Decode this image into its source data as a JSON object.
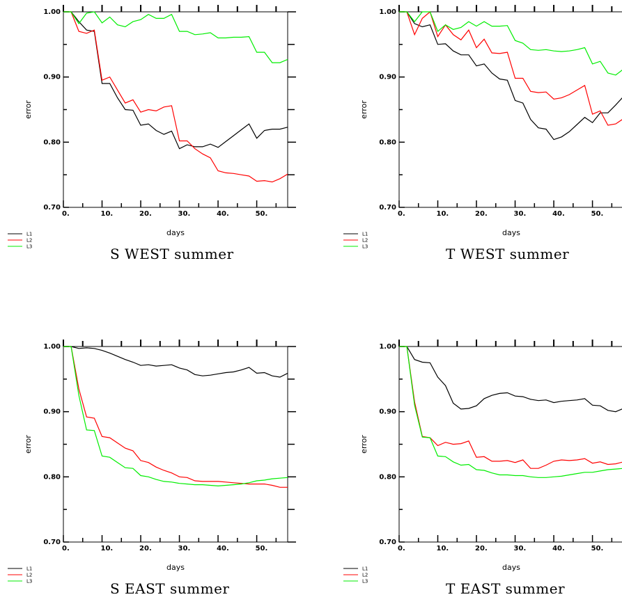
{
  "chart_data": [
    {
      "type": "line",
      "title": "S WEST summer",
      "xlabel": "days",
      "ylabel": "error",
      "xlim": [
        0,
        58
      ],
      "ylim": [
        0.7,
        1.0
      ],
      "xticks": [
        "0.",
        "10.",
        "20.",
        "30.",
        "40.",
        "50."
      ],
      "yticks": [
        "0.70",
        "0.80",
        "0.90",
        "1.00"
      ],
      "grid": false,
      "legend": "bottom-left-outside",
      "series": [
        {
          "name": "L1",
          "color": "#000000",
          "x": [
            0,
            2,
            4,
            6,
            8,
            10,
            12,
            14,
            16,
            18,
            20,
            22,
            24,
            26,
            28,
            30,
            32,
            34,
            36,
            38,
            40,
            42,
            44,
            46,
            48,
            50,
            52,
            54,
            56,
            58
          ],
          "values": [
            1.0,
            1.0,
            0.985,
            0.972,
            0.97,
            0.89,
            0.89,
            0.868,
            0.85,
            0.849,
            0.826,
            0.828,
            0.818,
            0.812,
            0.817,
            0.79,
            0.796,
            0.793,
            0.793,
            0.797,
            0.792,
            0.801,
            0.81,
            0.819,
            0.828,
            0.806,
            0.818,
            0.82,
            0.82,
            0.823
          ]
        },
        {
          "name": "L2",
          "color": "#ff0000",
          "x": [
            0,
            2,
            4,
            6,
            8,
            10,
            12,
            14,
            16,
            18,
            20,
            22,
            24,
            26,
            28,
            30,
            32,
            34,
            36,
            38,
            40,
            42,
            44,
            46,
            48,
            50,
            52,
            54,
            56,
            58
          ],
          "values": [
            1.0,
            1.0,
            0.97,
            0.967,
            0.972,
            0.895,
            0.9,
            0.88,
            0.86,
            0.865,
            0.846,
            0.85,
            0.848,
            0.854,
            0.856,
            0.802,
            0.802,
            0.79,
            0.782,
            0.776,
            0.756,
            0.753,
            0.752,
            0.75,
            0.748,
            0.74,
            0.741,
            0.739,
            0.744,
            0.751
          ]
        },
        {
          "name": "L3",
          "color": "#00ee00",
          "x": [
            0,
            2,
            4,
            6,
            8,
            10,
            12,
            14,
            16,
            18,
            20,
            22,
            24,
            26,
            28,
            30,
            32,
            34,
            36,
            38,
            40,
            42,
            44,
            46,
            48,
            50,
            52,
            54,
            56,
            58
          ],
          "values": [
            1.0,
            1.0,
            0.982,
            0.998,
            1.0,
            0.983,
            0.992,
            0.98,
            0.977,
            0.985,
            0.988,
            0.996,
            0.99,
            0.99,
            0.996,
            0.97,
            0.97,
            0.965,
            0.966,
            0.968,
            0.96,
            0.96,
            0.961,
            0.961,
            0.962,
            0.938,
            0.938,
            0.922,
            0.922,
            0.927
          ]
        }
      ]
    },
    {
      "type": "line",
      "title": "T WEST summer",
      "xlabel": "days",
      "ylabel": "error",
      "xlim": [
        0,
        58
      ],
      "ylim": [
        0.7,
        1.0
      ],
      "xticks": [
        "0.",
        "10.",
        "20.",
        "30.",
        "40.",
        "50."
      ],
      "yticks": [
        "0.70",
        "0.80",
        "0.90",
        "1.00"
      ],
      "grid": false,
      "legend": "bottom-left-outside",
      "series": [
        {
          "name": "L1",
          "color": "#000000",
          "x": [
            0,
            2,
            4,
            6,
            8,
            10,
            12,
            14,
            16,
            18,
            20,
            22,
            24,
            26,
            28,
            30,
            32,
            34,
            36,
            38,
            40,
            42,
            44,
            46,
            48,
            50,
            52,
            54,
            56,
            58
          ],
          "values": [
            1.0,
            1.0,
            0.982,
            0.977,
            0.98,
            0.95,
            0.951,
            0.94,
            0.934,
            0.934,
            0.917,
            0.92,
            0.906,
            0.897,
            0.895,
            0.864,
            0.86,
            0.835,
            0.822,
            0.82,
            0.804,
            0.808,
            0.816,
            0.827,
            0.838,
            0.83,
            0.845,
            0.845,
            0.857,
            0.87
          ]
        },
        {
          "name": "L2",
          "color": "#ff0000",
          "x": [
            0,
            2,
            4,
            6,
            8,
            10,
            12,
            14,
            16,
            18,
            20,
            22,
            24,
            26,
            28,
            30,
            32,
            34,
            36,
            38,
            40,
            42,
            44,
            46,
            48,
            50,
            52,
            54,
            56,
            58
          ],
          "values": [
            1.0,
            1.0,
            0.965,
            0.99,
            1.0,
            0.962,
            0.98,
            0.965,
            0.957,
            0.972,
            0.945,
            0.958,
            0.937,
            0.936,
            0.938,
            0.898,
            0.898,
            0.878,
            0.876,
            0.877,
            0.866,
            0.868,
            0.873,
            0.88,
            0.887,
            0.843,
            0.848,
            0.826,
            0.828,
            0.836
          ]
        },
        {
          "name": "L3",
          "color": "#00ee00",
          "x": [
            0,
            2,
            4,
            6,
            8,
            10,
            12,
            14,
            16,
            18,
            20,
            22,
            24,
            26,
            28,
            30,
            32,
            34,
            36,
            38,
            40,
            42,
            44,
            46,
            48,
            50,
            52,
            54,
            56,
            58
          ],
          "values": [
            1.0,
            1.0,
            0.985,
            1.0,
            1.0,
            0.97,
            0.98,
            0.973,
            0.976,
            0.985,
            0.978,
            0.985,
            0.978,
            0.978,
            0.979,
            0.956,
            0.952,
            0.942,
            0.941,
            0.942,
            0.94,
            0.939,
            0.94,
            0.942,
            0.945,
            0.92,
            0.924,
            0.906,
            0.903,
            0.912
          ]
        }
      ]
    },
    {
      "type": "line",
      "title": "S EAST summer",
      "xlabel": "days",
      "ylabel": "error",
      "xlim": [
        0,
        58
      ],
      "ylim": [
        0.7,
        1.0
      ],
      "xticks": [
        "0.",
        "10.",
        "20.",
        "30.",
        "40.",
        "50."
      ],
      "yticks": [
        "0.70",
        "0.80",
        "0.90",
        "1.00"
      ],
      "grid": false,
      "legend": "bottom-left-outside",
      "series": [
        {
          "name": "L1",
          "color": "#000000",
          "x": [
            0,
            2,
            4,
            6,
            8,
            10,
            12,
            14,
            16,
            18,
            20,
            22,
            24,
            26,
            28,
            30,
            32,
            34,
            36,
            38,
            40,
            42,
            44,
            46,
            48,
            50,
            52,
            54,
            56,
            58
          ],
          "values": [
            1.0,
            1.0,
            0.997,
            0.998,
            0.997,
            0.994,
            0.99,
            0.985,
            0.98,
            0.976,
            0.971,
            0.972,
            0.97,
            0.971,
            0.972,
            0.967,
            0.964,
            0.957,
            0.955,
            0.956,
            0.958,
            0.96,
            0.961,
            0.964,
            0.968,
            0.959,
            0.96,
            0.955,
            0.953,
            0.959
          ]
        },
        {
          "name": "L2",
          "color": "#ff0000",
          "x": [
            0,
            2,
            4,
            6,
            8,
            10,
            12,
            14,
            16,
            18,
            20,
            22,
            24,
            26,
            28,
            30,
            32,
            34,
            36,
            38,
            40,
            42,
            44,
            46,
            48,
            50,
            52,
            54,
            56,
            58
          ],
          "values": [
            1.0,
            1.0,
            0.935,
            0.892,
            0.89,
            0.862,
            0.86,
            0.852,
            0.844,
            0.84,
            0.825,
            0.822,
            0.815,
            0.81,
            0.806,
            0.8,
            0.799,
            0.794,
            0.793,
            0.793,
            0.793,
            0.792,
            0.791,
            0.79,
            0.789,
            0.789,
            0.789,
            0.787,
            0.784,
            0.784
          ]
        },
        {
          "name": "L3",
          "color": "#00ee00",
          "x": [
            0,
            2,
            4,
            6,
            8,
            10,
            12,
            14,
            16,
            18,
            20,
            22,
            24,
            26,
            28,
            30,
            32,
            34,
            36,
            38,
            40,
            42,
            44,
            46,
            48,
            50,
            52,
            54,
            56,
            58
          ],
          "values": [
            1.0,
            1.0,
            0.925,
            0.872,
            0.871,
            0.832,
            0.83,
            0.822,
            0.814,
            0.813,
            0.802,
            0.8,
            0.796,
            0.793,
            0.792,
            0.79,
            0.789,
            0.788,
            0.788,
            0.787,
            0.786,
            0.787,
            0.788,
            0.789,
            0.791,
            0.794,
            0.795,
            0.797,
            0.798,
            0.799
          ]
        }
      ]
    },
    {
      "type": "line",
      "title": "T EAST summer",
      "xlabel": "days",
      "ylabel": "error",
      "xlim": [
        0,
        58
      ],
      "ylim": [
        0.7,
        1.0
      ],
      "xticks": [
        "0.",
        "10.",
        "20.",
        "30.",
        "40.",
        "50."
      ],
      "yticks": [
        "0.70",
        "0.80",
        "0.90",
        "1.00"
      ],
      "grid": false,
      "legend": "bottom-left-outside",
      "series": [
        {
          "name": "L1",
          "color": "#000000",
          "x": [
            0,
            2,
            4,
            6,
            8,
            10,
            12,
            14,
            16,
            18,
            20,
            22,
            24,
            26,
            28,
            30,
            32,
            34,
            36,
            38,
            40,
            42,
            44,
            46,
            48,
            50,
            52,
            54,
            56,
            58
          ],
          "values": [
            1.0,
            1.0,
            0.98,
            0.976,
            0.975,
            0.953,
            0.94,
            0.913,
            0.904,
            0.905,
            0.909,
            0.92,
            0.925,
            0.928,
            0.929,
            0.924,
            0.923,
            0.919,
            0.917,
            0.918,
            0.914,
            0.916,
            0.917,
            0.918,
            0.92,
            0.91,
            0.909,
            0.902,
            0.9,
            0.905
          ]
        },
        {
          "name": "L2",
          "color": "#ff0000",
          "x": [
            0,
            2,
            4,
            6,
            8,
            10,
            12,
            14,
            16,
            18,
            20,
            22,
            24,
            26,
            28,
            30,
            32,
            34,
            36,
            38,
            40,
            42,
            44,
            46,
            48,
            50,
            52,
            54,
            56,
            58
          ],
          "values": [
            1.0,
            1.0,
            0.915,
            0.862,
            0.86,
            0.848,
            0.853,
            0.85,
            0.851,
            0.855,
            0.83,
            0.831,
            0.824,
            0.824,
            0.825,
            0.822,
            0.826,
            0.813,
            0.813,
            0.818,
            0.824,
            0.826,
            0.825,
            0.826,
            0.828,
            0.821,
            0.823,
            0.819,
            0.82,
            0.823
          ]
        },
        {
          "name": "L3",
          "color": "#00ee00",
          "x": [
            0,
            2,
            4,
            6,
            8,
            10,
            12,
            14,
            16,
            18,
            20,
            22,
            24,
            26,
            28,
            30,
            32,
            34,
            36,
            38,
            40,
            42,
            44,
            46,
            48,
            50,
            52,
            54,
            56,
            58
          ],
          "values": [
            1.0,
            1.0,
            0.91,
            0.861,
            0.86,
            0.832,
            0.831,
            0.823,
            0.818,
            0.819,
            0.811,
            0.81,
            0.806,
            0.803,
            0.803,
            0.802,
            0.802,
            0.8,
            0.799,
            0.799,
            0.8,
            0.801,
            0.803,
            0.805,
            0.807,
            0.807,
            0.809,
            0.811,
            0.812,
            0.813
          ]
        }
      ]
    }
  ]
}
